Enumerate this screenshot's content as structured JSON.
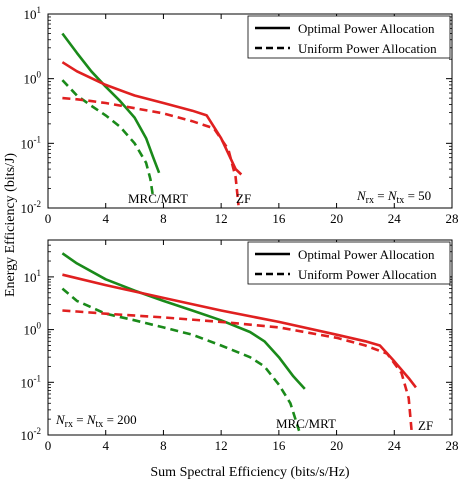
{
  "xlabel": "Sum Spectral Efficiency (bits/s/Hz)",
  "ylabel": "Energy Efficiency (bits/J)",
  "x_ticks": [
    "0",
    "4",
    "8",
    "12",
    "16",
    "20",
    "24",
    "28"
  ],
  "y_ticks": [
    {
      "base": "10",
      "exp": "1"
    },
    {
      "base": "10",
      "exp": "0"
    },
    {
      "base": "10",
      "exp": "-1"
    },
    {
      "base": "10",
      "exp": "-2"
    }
  ],
  "legend": {
    "optimal": "Optimal Power Allocation",
    "uniform": "Uniform Power Allocation"
  },
  "colors": {
    "mrc": "#1a8a1a",
    "zf": "#e02020",
    "axis": "#000000"
  },
  "chart_data": [
    {
      "type": "line",
      "xlim": [
        0,
        28
      ],
      "ylim": [
        0.01,
        10
      ],
      "yscale": "log",
      "xlabel": "",
      "ylabel": "",
      "condition": {
        "lhs": "N",
        "lhs_sub": "rx",
        "mid": "N",
        "mid_sub": "tx",
        "rhs": "50"
      },
      "labels": {
        "mrc": "MRC/MRT",
        "zf": "ZF"
      },
      "series": [
        {
          "key": "mrc_opt",
          "method": "MRC/MRT",
          "allocation": "Optimal Power Allocation",
          "points": [
            [
              1,
              5.0
            ],
            [
              2,
              2.5
            ],
            [
              3,
              1.3
            ],
            [
              4,
              0.75
            ],
            [
              5,
              0.45
            ],
            [
              6,
              0.25
            ],
            [
              6.8,
              0.12
            ],
            [
              7.3,
              0.06
            ],
            [
              7.7,
              0.035
            ]
          ]
        },
        {
          "key": "mrc_uni",
          "method": "MRC/MRT",
          "allocation": "Uniform Power Allocation",
          "points": [
            [
              1,
              0.95
            ],
            [
              2,
              0.55
            ],
            [
              3,
              0.38
            ],
            [
              4,
              0.27
            ],
            [
              5,
              0.18
            ],
            [
              6,
              0.1
            ],
            [
              6.8,
              0.05
            ],
            [
              7.1,
              0.028
            ],
            [
              7.3,
              0.014
            ]
          ]
        },
        {
          "key": "zf_opt",
          "method": "ZF",
          "allocation": "Optimal Power Allocation",
          "points": [
            [
              1,
              1.8
            ],
            [
              2,
              1.3
            ],
            [
              4,
              0.8
            ],
            [
              6,
              0.55
            ],
            [
              8,
              0.42
            ],
            [
              10,
              0.32
            ],
            [
              11,
              0.27
            ],
            [
              12,
              0.12
            ],
            [
              13,
              0.04
            ],
            [
              13.4,
              0.033
            ]
          ]
        },
        {
          "key": "zf_uni",
          "method": "ZF",
          "allocation": "Uniform Power Allocation",
          "points": [
            [
              1,
              0.5
            ],
            [
              2,
              0.48
            ],
            [
              3,
              0.45
            ],
            [
              4,
              0.42
            ],
            [
              6,
              0.35
            ],
            [
              8,
              0.29
            ],
            [
              10,
              0.22
            ],
            [
              11.5,
              0.17
            ],
            [
              12.5,
              0.08
            ],
            [
              13,
              0.03
            ],
            [
              13.2,
              0.011
            ]
          ]
        }
      ]
    },
    {
      "type": "line",
      "xlim": [
        0,
        28
      ],
      "ylim": [
        0.01,
        50
      ],
      "yscale": "log",
      "xlabel": "Sum Spectral Efficiency (bits/s/Hz)",
      "ylabel": "Energy Efficiency (bits/J)",
      "condition": {
        "lhs": "N",
        "lhs_sub": "rx",
        "mid": "N",
        "mid_sub": "tx",
        "rhs": "200"
      },
      "labels": {
        "mrc": "MRC/MRT",
        "zf": "ZF"
      },
      "series": [
        {
          "key": "mrc_opt",
          "method": "MRC/MRT",
          "allocation": "Optimal Power Allocation",
          "points": [
            [
              1,
              28
            ],
            [
              2,
              18
            ],
            [
              4,
              9
            ],
            [
              6,
              5.5
            ],
            [
              8,
              3.5
            ],
            [
              10,
              2.3
            ],
            [
              12,
              1.5
            ],
            [
              14,
              0.9
            ],
            [
              15,
              0.6
            ],
            [
              16,
              0.3
            ],
            [
              17,
              0.13
            ],
            [
              17.8,
              0.075
            ]
          ]
        },
        {
          "key": "mrc_uni",
          "method": "MRC/MRT",
          "allocation": "Uniform Power Allocation",
          "points": [
            [
              1,
              6
            ],
            [
              2,
              3.5
            ],
            [
              4,
              2.0
            ],
            [
              6,
              1.5
            ],
            [
              8,
              1.1
            ],
            [
              10,
              0.8
            ],
            [
              12,
              0.5
            ],
            [
              14,
              0.3
            ],
            [
              15,
              0.2
            ],
            [
              16,
              0.09
            ],
            [
              16.8,
              0.04
            ],
            [
              17.4,
              0.012
            ]
          ]
        },
        {
          "key": "zf_opt",
          "method": "ZF",
          "allocation": "Optimal Power Allocation",
          "points": [
            [
              1,
              11
            ],
            [
              4,
              7
            ],
            [
              8,
              4
            ],
            [
              12,
              2.3
            ],
            [
              16,
              1.4
            ],
            [
              20,
              0.8
            ],
            [
              22,
              0.6
            ],
            [
              23,
              0.5
            ],
            [
              24,
              0.25
            ],
            [
              25,
              0.12
            ],
            [
              25.5,
              0.08
            ]
          ]
        },
        {
          "key": "zf_uni",
          "method": "ZF",
          "allocation": "Uniform Power Allocation",
          "points": [
            [
              1,
              2.3
            ],
            [
              2,
              2.2
            ],
            [
              4,
              2.0
            ],
            [
              8,
              1.7
            ],
            [
              12,
              1.4
            ],
            [
              16,
              1.1
            ],
            [
              20,
              0.7
            ],
            [
              22,
              0.5
            ],
            [
              23.5,
              0.35
            ],
            [
              24.5,
              0.15
            ],
            [
              25,
              0.05
            ],
            [
              25.2,
              0.012
            ]
          ]
        }
      ]
    }
  ]
}
